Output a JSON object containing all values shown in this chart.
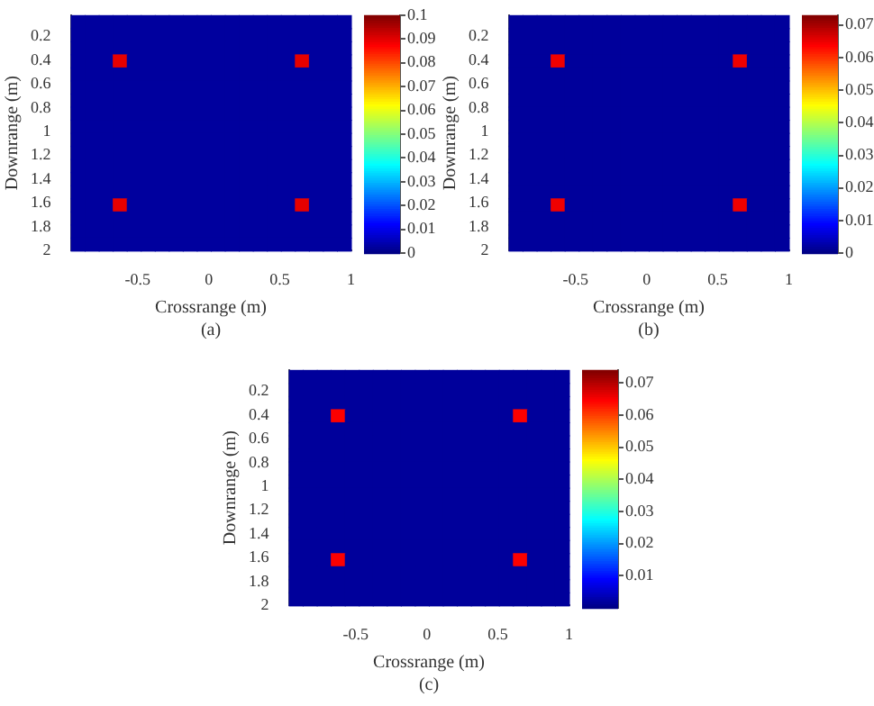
{
  "chart_data": [
    {
      "type": "heatmap",
      "xlabel": "Crossrange (m)",
      "ylabel": "Downrange (m)",
      "annotations": [
        "(a)"
      ],
      "grid": false,
      "xlim": [
        -0.97,
        1
      ],
      "xticks": [
        -0.5,
        0,
        0.5,
        1
      ],
      "ylim": [
        2,
        0.02
      ],
      "yticks": [
        0.2,
        0.4,
        0.6,
        0.8,
        1,
        1.2,
        1.4,
        1.6,
        1.8,
        2
      ],
      "clim": [
        0,
        0.1
      ],
      "cticks": [
        0,
        0.01,
        0.02,
        0.03,
        0.04,
        0.05,
        0.06,
        0.07,
        0.08,
        0.09,
        0.1
      ],
      "cells": [
        [
          0.003,
          0.003,
          0.003,
          0.003,
          0.003,
          0.003,
          0.003,
          0.003,
          0.003,
          0.003,
          0.003,
          0.003,
          0.003,
          0.003,
          0.003,
          0.003,
          0.003,
          0.003,
          0.003,
          0.003
        ],
        [
          0.003,
          0.003,
          0.003,
          0.003,
          0.003,
          0.003,
          0.003,
          0.003,
          0.003,
          0.003,
          0.003,
          0.003,
          0.003,
          0.003,
          0.003,
          0.003,
          0.003,
          0.003,
          0.003,
          0.003
        ],
        [
          0.003,
          0.003,
          0.003,
          0.003,
          0.003,
          0.003,
          0.003,
          0.003,
          0.003,
          0.003,
          0.003,
          0.003,
          0.003,
          0.003,
          0.003,
          0.003,
          0.003,
          0.003,
          0.003,
          0.003
        ],
        [
          0.003,
          0.003,
          0.003,
          0.09,
          0.003,
          0.003,
          0.003,
          0.003,
          0.003,
          0.003,
          0.003,
          0.003,
          0.003,
          0.003,
          0.003,
          0.003,
          0.09,
          0.003,
          0.003,
          0.003
        ],
        [
          0.003,
          0.003,
          0.003,
          0.003,
          0.003,
          0.003,
          0.003,
          0.003,
          0.003,
          0.003,
          0.003,
          0.003,
          0.003,
          0.003,
          0.003,
          0.003,
          0.003,
          0.003,
          0.003,
          0.003
        ],
        [
          0.003,
          0.003,
          0.003,
          0.003,
          0.003,
          0.003,
          0.003,
          0.003,
          0.003,
          0.003,
          0.003,
          0.003,
          0.003,
          0.003,
          0.003,
          0.003,
          0.003,
          0.003,
          0.003,
          0.003
        ],
        [
          0.003,
          0.003,
          0.003,
          0.003,
          0.003,
          0.003,
          0.003,
          0.003,
          0.003,
          0.003,
          0.003,
          0.003,
          0.003,
          0.003,
          0.003,
          0.003,
          0.003,
          0.003,
          0.003,
          0.003
        ],
        [
          0.003,
          0.003,
          0.003,
          0.003,
          0.003,
          0.003,
          0.003,
          0.003,
          0.003,
          0.003,
          0.003,
          0.003,
          0.003,
          0.003,
          0.003,
          0.003,
          0.003,
          0.003,
          0.003,
          0.003
        ],
        [
          0.003,
          0.003,
          0.003,
          0.003,
          0.003,
          0.003,
          0.003,
          0.003,
          0.003,
          0.003,
          0.003,
          0.003,
          0.003,
          0.003,
          0.003,
          0.003,
          0.003,
          0.003,
          0.003,
          0.003
        ],
        [
          0.003,
          0.003,
          0.003,
          0.003,
          0.003,
          0.003,
          0.003,
          0.003,
          0.003,
          0.003,
          0.003,
          0.003,
          0.003,
          0.003,
          0.003,
          0.003,
          0.003,
          0.003,
          0.003,
          0.003
        ],
        [
          0.003,
          0.003,
          0.003,
          0.003,
          0.003,
          0.003,
          0.003,
          0.003,
          0.003,
          0.003,
          0.003,
          0.003,
          0.003,
          0.003,
          0.003,
          0.003,
          0.003,
          0.003,
          0.003,
          0.003
        ],
        [
          0.003,
          0.003,
          0.003,
          0.003,
          0.003,
          0.003,
          0.003,
          0.003,
          0.003,
          0.003,
          0.003,
          0.003,
          0.003,
          0.003,
          0.003,
          0.003,
          0.003,
          0.003,
          0.003,
          0.003
        ],
        [
          0.003,
          0.003,
          0.003,
          0.003,
          0.003,
          0.003,
          0.003,
          0.003,
          0.003,
          0.003,
          0.003,
          0.003,
          0.003,
          0.003,
          0.003,
          0.003,
          0.003,
          0.003,
          0.003,
          0.003
        ],
        [
          0.003,
          0.003,
          0.003,
          0.003,
          0.003,
          0.003,
          0.003,
          0.003,
          0.003,
          0.003,
          0.003,
          0.003,
          0.003,
          0.003,
          0.003,
          0.003,
          0.003,
          0.003,
          0.003,
          0.003
        ],
        [
          0.003,
          0.003,
          0.003,
          0.09,
          0.003,
          0.003,
          0.003,
          0.003,
          0.003,
          0.003,
          0.003,
          0.003,
          0.003,
          0.003,
          0.003,
          0.003,
          0.09,
          0.003,
          0.003,
          0.003
        ],
        [
          0.003,
          0.003,
          0.003,
          0.003,
          0.003,
          0.003,
          0.003,
          0.003,
          0.003,
          0.003,
          0.003,
          0.003,
          0.003,
          0.003,
          0.003,
          0.003,
          0.003,
          0.003,
          0.003,
          0.003
        ],
        [
          0.003,
          0.003,
          0.003,
          0.003,
          0.003,
          0.003,
          0.003,
          0.003,
          0.003,
          0.003,
          0.003,
          0.003,
          0.003,
          0.003,
          0.003,
          0.003,
          0.003,
          0.003,
          0.003,
          0.003
        ],
        [
          0.003,
          0.003,
          0.003,
          0.003,
          0.003,
          0.003,
          0.003,
          0.003,
          0.003,
          0.003,
          0.003,
          0.003,
          0.003,
          0.003,
          0.003,
          0.003,
          0.003,
          0.003,
          0.003,
          0.003
        ]
      ]
    },
    {
      "type": "heatmap",
      "xlabel": "Crossrange (m)",
      "ylabel": "Downrange (m)",
      "annotations": [
        "(b)"
      ],
      "grid": false,
      "xlim": [
        -0.97,
        1
      ],
      "xticks": [
        -0.5,
        0,
        0.5,
        1
      ],
      "ylim": [
        2,
        0.02
      ],
      "yticks": [
        0.2,
        0.4,
        0.6,
        0.8,
        1,
        1.2,
        1.4,
        1.6,
        1.8,
        2
      ],
      "clim": [
        0,
        0.073
      ],
      "cticks": [
        0,
        0.01,
        0.02,
        0.03,
        0.04,
        0.05,
        0.06,
        0.07
      ],
      "cells": [
        [
          0.002,
          0.002,
          0.002,
          0.002,
          0.002,
          0.002,
          0.002,
          0.002,
          0.002,
          0.002,
          0.002,
          0.002,
          0.002,
          0.002,
          0.002,
          0.002,
          0.002,
          0.002,
          0.002,
          0.002
        ],
        [
          0.002,
          0.002,
          0.002,
          0.002,
          0.002,
          0.002,
          0.002,
          0.002,
          0.002,
          0.002,
          0.002,
          0.002,
          0.002,
          0.002,
          0.002,
          0.002,
          0.002,
          0.002,
          0.002,
          0.002
        ],
        [
          0.002,
          0.002,
          0.002,
          0.002,
          0.002,
          0.002,
          0.002,
          0.002,
          0.002,
          0.002,
          0.002,
          0.002,
          0.002,
          0.002,
          0.002,
          0.002,
          0.002,
          0.002,
          0.002,
          0.002
        ],
        [
          0.002,
          0.002,
          0.002,
          0.065,
          0.002,
          0.002,
          0.002,
          0.002,
          0.002,
          0.002,
          0.002,
          0.002,
          0.002,
          0.002,
          0.002,
          0.002,
          0.065,
          0.002,
          0.002,
          0.002
        ],
        [
          0.002,
          0.002,
          0.002,
          0.002,
          0.002,
          0.002,
          0.002,
          0.002,
          0.002,
          0.002,
          0.002,
          0.002,
          0.002,
          0.002,
          0.002,
          0.002,
          0.002,
          0.002,
          0.002,
          0.002
        ],
        [
          0.002,
          0.002,
          0.002,
          0.002,
          0.002,
          0.002,
          0.002,
          0.002,
          0.002,
          0.002,
          0.002,
          0.002,
          0.002,
          0.002,
          0.002,
          0.002,
          0.002,
          0.002,
          0.002,
          0.002
        ],
        [
          0.002,
          0.002,
          0.002,
          0.002,
          0.002,
          0.002,
          0.002,
          0.002,
          0.002,
          0.002,
          0.002,
          0.002,
          0.002,
          0.002,
          0.002,
          0.002,
          0.002,
          0.002,
          0.002,
          0.002
        ],
        [
          0.002,
          0.002,
          0.002,
          0.002,
          0.002,
          0.002,
          0.002,
          0.002,
          0.002,
          0.002,
          0.002,
          0.002,
          0.002,
          0.002,
          0.002,
          0.002,
          0.002,
          0.002,
          0.002,
          0.002
        ],
        [
          0.002,
          0.002,
          0.002,
          0.002,
          0.002,
          0.002,
          0.002,
          0.002,
          0.002,
          0.002,
          0.002,
          0.002,
          0.002,
          0.002,
          0.002,
          0.002,
          0.002,
          0.002,
          0.002,
          0.002
        ],
        [
          0.002,
          0.002,
          0.002,
          0.002,
          0.002,
          0.002,
          0.002,
          0.002,
          0.002,
          0.002,
          0.002,
          0.002,
          0.002,
          0.002,
          0.002,
          0.002,
          0.002,
          0.002,
          0.002,
          0.002
        ],
        [
          0.002,
          0.002,
          0.002,
          0.002,
          0.002,
          0.002,
          0.002,
          0.002,
          0.002,
          0.002,
          0.002,
          0.002,
          0.002,
          0.002,
          0.002,
          0.002,
          0.002,
          0.002,
          0.002,
          0.002
        ],
        [
          0.002,
          0.002,
          0.002,
          0.002,
          0.002,
          0.002,
          0.002,
          0.002,
          0.002,
          0.002,
          0.002,
          0.002,
          0.002,
          0.002,
          0.002,
          0.002,
          0.002,
          0.002,
          0.002,
          0.002
        ],
        [
          0.002,
          0.002,
          0.002,
          0.002,
          0.002,
          0.002,
          0.002,
          0.002,
          0.002,
          0.002,
          0.002,
          0.002,
          0.002,
          0.002,
          0.002,
          0.002,
          0.002,
          0.002,
          0.002,
          0.002
        ],
        [
          0.002,
          0.002,
          0.002,
          0.002,
          0.002,
          0.002,
          0.002,
          0.002,
          0.002,
          0.002,
          0.002,
          0.002,
          0.002,
          0.002,
          0.002,
          0.002,
          0.002,
          0.002,
          0.002,
          0.002
        ],
        [
          0.002,
          0.002,
          0.002,
          0.065,
          0.002,
          0.002,
          0.002,
          0.002,
          0.002,
          0.002,
          0.002,
          0.002,
          0.002,
          0.002,
          0.002,
          0.002,
          0.065,
          0.002,
          0.002,
          0.002
        ],
        [
          0.002,
          0.002,
          0.002,
          0.002,
          0.002,
          0.002,
          0.002,
          0.002,
          0.002,
          0.002,
          0.002,
          0.002,
          0.002,
          0.002,
          0.002,
          0.002,
          0.002,
          0.002,
          0.002,
          0.002
        ],
        [
          0.002,
          0.002,
          0.002,
          0.002,
          0.002,
          0.002,
          0.002,
          0.002,
          0.002,
          0.002,
          0.002,
          0.002,
          0.002,
          0.002,
          0.002,
          0.002,
          0.002,
          0.002,
          0.002,
          0.002
        ],
        [
          0.002,
          0.002,
          0.002,
          0.002,
          0.002,
          0.002,
          0.002,
          0.002,
          0.002,
          0.002,
          0.002,
          0.002,
          0.002,
          0.002,
          0.002,
          0.002,
          0.002,
          0.002,
          0.002,
          0.002
        ]
      ]
    },
    {
      "type": "heatmap",
      "xlabel": "Crossrange (m)",
      "ylabel": "Downrange (m)",
      "annotations": [
        "(c)"
      ],
      "grid": false,
      "xlim": [
        -0.97,
        1
      ],
      "xticks": [
        -0.5,
        0,
        0.5,
        1
      ],
      "ylim": [
        2,
        0.02
      ],
      "yticks": [
        0.2,
        0.4,
        0.6,
        0.8,
        1,
        1.2,
        1.4,
        1.6,
        1.8,
        2
      ],
      "clim": [
        0,
        0.074
      ],
      "cticks": [
        0.01,
        0.02,
        0.03,
        0.04,
        0.05,
        0.06,
        0.07
      ],
      "cells": [
        [
          0.002,
          0.002,
          0.002,
          0.002,
          0.002,
          0.002,
          0.002,
          0.002,
          0.002,
          0.002,
          0.002,
          0.002,
          0.002,
          0.002,
          0.002,
          0.002,
          0.002,
          0.002,
          0.002,
          0.002
        ],
        [
          0.002,
          0.002,
          0.002,
          0.002,
          0.002,
          0.002,
          0.002,
          0.002,
          0.002,
          0.002,
          0.002,
          0.002,
          0.002,
          0.002,
          0.002,
          0.002,
          0.002,
          0.002,
          0.002,
          0.002
        ],
        [
          0.002,
          0.002,
          0.002,
          0.002,
          0.002,
          0.002,
          0.002,
          0.002,
          0.002,
          0.002,
          0.002,
          0.002,
          0.002,
          0.002,
          0.002,
          0.002,
          0.002,
          0.002,
          0.002,
          0.002
        ],
        [
          0.002,
          0.002,
          0.002,
          0.065,
          0.002,
          0.002,
          0.002,
          0.002,
          0.002,
          0.002,
          0.002,
          0.002,
          0.002,
          0.002,
          0.002,
          0.002,
          0.065,
          0.002,
          0.002,
          0.002
        ],
        [
          0.002,
          0.002,
          0.002,
          0.002,
          0.002,
          0.002,
          0.002,
          0.002,
          0.002,
          0.002,
          0.002,
          0.002,
          0.002,
          0.002,
          0.002,
          0.002,
          0.002,
          0.002,
          0.002,
          0.002
        ],
        [
          0.002,
          0.002,
          0.002,
          0.002,
          0.002,
          0.002,
          0.002,
          0.002,
          0.002,
          0.002,
          0.002,
          0.002,
          0.002,
          0.002,
          0.002,
          0.002,
          0.002,
          0.002,
          0.002,
          0.002
        ],
        [
          0.002,
          0.002,
          0.002,
          0.002,
          0.002,
          0.002,
          0.002,
          0.002,
          0.002,
          0.002,
          0.002,
          0.002,
          0.002,
          0.002,
          0.002,
          0.002,
          0.002,
          0.002,
          0.002,
          0.002
        ],
        [
          0.002,
          0.002,
          0.002,
          0.002,
          0.002,
          0.002,
          0.002,
          0.002,
          0.002,
          0.002,
          0.002,
          0.002,
          0.002,
          0.002,
          0.002,
          0.002,
          0.002,
          0.002,
          0.002,
          0.002
        ],
        [
          0.002,
          0.002,
          0.002,
          0.002,
          0.002,
          0.002,
          0.002,
          0.002,
          0.002,
          0.002,
          0.002,
          0.002,
          0.002,
          0.002,
          0.002,
          0.002,
          0.002,
          0.002,
          0.002,
          0.002
        ],
        [
          0.002,
          0.002,
          0.002,
          0.002,
          0.002,
          0.002,
          0.002,
          0.002,
          0.002,
          0.002,
          0.002,
          0.002,
          0.002,
          0.002,
          0.002,
          0.002,
          0.002,
          0.002,
          0.002,
          0.002
        ],
        [
          0.002,
          0.002,
          0.002,
          0.002,
          0.002,
          0.002,
          0.002,
          0.002,
          0.002,
          0.002,
          0.002,
          0.002,
          0.002,
          0.002,
          0.002,
          0.002,
          0.002,
          0.002,
          0.002,
          0.002
        ],
        [
          0.002,
          0.002,
          0.002,
          0.002,
          0.002,
          0.002,
          0.002,
          0.002,
          0.002,
          0.002,
          0.002,
          0.002,
          0.002,
          0.002,
          0.002,
          0.002,
          0.002,
          0.002,
          0.002,
          0.002
        ],
        [
          0.002,
          0.002,
          0.002,
          0.002,
          0.002,
          0.002,
          0.002,
          0.002,
          0.002,
          0.002,
          0.002,
          0.002,
          0.002,
          0.002,
          0.002,
          0.002,
          0.002,
          0.002,
          0.002,
          0.002
        ],
        [
          0.002,
          0.002,
          0.002,
          0.002,
          0.002,
          0.002,
          0.002,
          0.002,
          0.002,
          0.002,
          0.002,
          0.002,
          0.002,
          0.002,
          0.002,
          0.002,
          0.002,
          0.002,
          0.002,
          0.002
        ],
        [
          0.002,
          0.002,
          0.002,
          0.065,
          0.002,
          0.002,
          0.002,
          0.002,
          0.002,
          0.002,
          0.002,
          0.002,
          0.002,
          0.002,
          0.002,
          0.002,
          0.065,
          0.002,
          0.002,
          0.002
        ],
        [
          0.002,
          0.002,
          0.002,
          0.002,
          0.002,
          0.002,
          0.002,
          0.002,
          0.002,
          0.002,
          0.002,
          0.002,
          0.002,
          0.002,
          0.002,
          0.002,
          0.002,
          0.002,
          0.002,
          0.002
        ],
        [
          0.002,
          0.002,
          0.002,
          0.002,
          0.002,
          0.002,
          0.002,
          0.002,
          0.002,
          0.002,
          0.002,
          0.002,
          0.002,
          0.002,
          0.002,
          0.002,
          0.002,
          0.002,
          0.002,
          0.002
        ],
        [
          0.002,
          0.002,
          0.002,
          0.002,
          0.002,
          0.002,
          0.002,
          0.002,
          0.002,
          0.002,
          0.002,
          0.002,
          0.002,
          0.002,
          0.002,
          0.002,
          0.002,
          0.002,
          0.002,
          0.002
        ]
      ]
    }
  ]
}
